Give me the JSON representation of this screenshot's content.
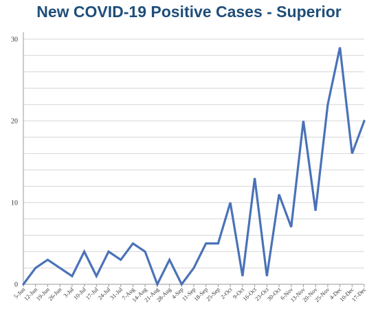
{
  "chart_data": {
    "type": "line",
    "title": "New COVID-19 Positive Cases - Superior",
    "xlabel": "",
    "ylabel": "",
    "ylim": [
      0,
      30
    ],
    "yticks": [
      0,
      10,
      20,
      30
    ],
    "grid": true,
    "color": "#4a72b8",
    "categories": [
      "5-Jun",
      "12-Jun",
      "19-Jun",
      "26-Jun",
      "3-Jul",
      "10-Jul",
      "17-Jul",
      "24-Jul",
      "31-Jul",
      "7-Aug",
      "14-Aug",
      "21-Aug",
      "28-Aug",
      "4-Sep",
      "11-Sep",
      "18-Sep",
      "25-Sep",
      "2-Oct",
      "9-Oct",
      "16-Oct",
      "23-Oct",
      "30-Oct",
      "6-Nov",
      "13-Nov",
      "20-Nov",
      "25-Nov",
      "4-Dec",
      "10-Dec",
      "17-Dec"
    ],
    "series": [
      {
        "values": [
          0,
          2,
          3,
          2,
          1,
          4,
          1,
          4,
          3,
          5,
          4,
          0,
          3,
          0,
          2,
          5,
          5,
          10,
          1,
          13,
          1,
          11,
          7,
          20,
          9,
          22,
          29,
          16,
          20
        ]
      }
    ]
  }
}
